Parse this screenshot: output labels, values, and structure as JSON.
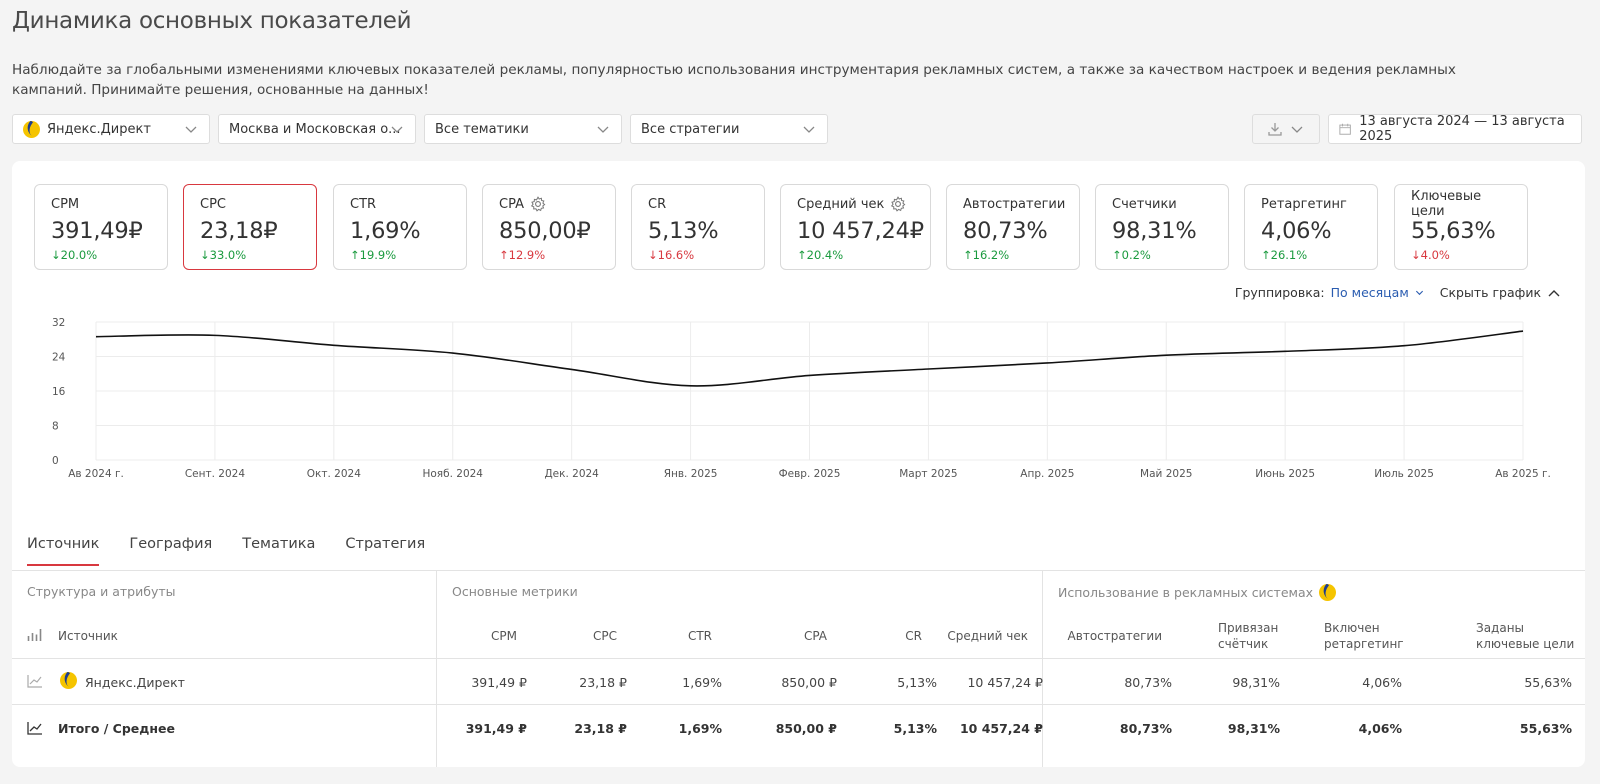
{
  "page": {
    "title": "Динамика основных показателей",
    "description": "Наблюдайте за глобальными изменениями ключевых показателей рекламы, популярностью использования инструментария рекламных систем, а также за качеством настроек и ведения рекламных кампаний. Принимайте решения, основанные на данных!"
  },
  "filters": {
    "source": "Яндекс.Директ",
    "region": "Москва и Московская о...",
    "topic": "Все тематики",
    "strategy": "Все стратегии",
    "date_range": "13 августа 2024 — 13 августа 2025"
  },
  "kpis": [
    {
      "label": "CPM",
      "value": "391,49₽",
      "change": "↓20.0%",
      "dir": "up"
    },
    {
      "label": "CPC",
      "value": "23,18₽",
      "change": "↓33.0%",
      "dir": "up"
    },
    {
      "label": "CTR",
      "value": "1,69%",
      "change": "↑19.9%",
      "dir": "up"
    },
    {
      "label": "CPA",
      "value": "850,00₽",
      "change": "↑12.9%",
      "dir": "down"
    },
    {
      "label": "CR",
      "value": "5,13%",
      "change": "↓16.6%",
      "dir": "down"
    },
    {
      "label": "Средний чек",
      "value": "10 457,24₽",
      "change": "↑20.4%",
      "dir": "up"
    },
    {
      "label": "Автостратегии",
      "value": "80,73%",
      "change": "↑16.2%",
      "dir": "up"
    },
    {
      "label": "Счетчики",
      "value": "98,31%",
      "change": "↑0.2%",
      "dir": "up"
    },
    {
      "label": "Ретаргетинг",
      "value": "4,06%",
      "change": "↑26.1%",
      "dir": "up"
    },
    {
      "label": "Ключевые цели",
      "value": "55,63%",
      "change": "↓4.0%",
      "dir": "down"
    }
  ],
  "grouping": {
    "label": "Группировка:",
    "value": "По месяцам",
    "hide_chart": "Скрыть график"
  },
  "chart_data": {
    "type": "line",
    "x": [
      "Ав 2024 г.",
      "Сент. 2024",
      "Окт. 2024",
      "Нояб. 2024",
      "Дек. 2024",
      "Янв. 2025",
      "Февр. 2025",
      "Март 2025",
      "Апр. 2025",
      "Май 2025",
      "Июнь 2025",
      "Июль 2025",
      "Ав 2025 г."
    ],
    "series": [
      {
        "values": [
          28.6,
          28.9,
          26.6,
          24.8,
          21.0,
          17.2,
          19.6,
          21.1,
          22.5,
          24.3,
          25.2,
          26.5,
          29.9
        ]
      }
    ],
    "ylim": [
      0,
      32
    ],
    "yticks": [
      "0",
      "8",
      "16",
      "24",
      "32"
    ],
    "grid": true,
    "color": "#111111"
  },
  "tabs": [
    "Источник",
    "География",
    "Тематика",
    "Стратегия"
  ],
  "table": {
    "groups": {
      "structure": "Структура и атрибуты",
      "metrics": "Основные метрики",
      "usage": "Использование в рекламных системах"
    },
    "headers": {
      "source": "Источник",
      "cpm": "CPM",
      "cpc": "CPC",
      "ctr": "CTR",
      "cpa": "CPA",
      "cr": "CR",
      "avg_check": "Средний чек",
      "auto": "Автостратегии",
      "counter_1": "Привязан",
      "counter_2": "счётчик",
      "retarget_1": "Включен",
      "retarget_2": "ретаргетинг",
      "goals_1": "Заданы",
      "goals_2": "ключевые цели"
    },
    "rows": [
      {
        "name": "Яндекс.Директ",
        "cpm": "391,49 ₽",
        "cpc": "23,18 ₽",
        "ctr": "1,69%",
        "cpa": "850,00 ₽",
        "cr": "5,13%",
        "avg": "10 457,24 ₽",
        "auto": "80,73%",
        "counter": "98,31%",
        "retarget": "4,06%",
        "goals": "55,63%"
      }
    ],
    "total": {
      "name": "Итого / Среднее",
      "cpm": "391,49 ₽",
      "cpc": "23,18 ₽",
      "ctr": "1,69%",
      "cpa": "850,00 ₽",
      "cr": "5,13%",
      "avg": "10 457,24 ₽",
      "auto": "80,73%",
      "counter": "98,31%",
      "retarget": "4,06%",
      "goals": "55,63%"
    }
  }
}
